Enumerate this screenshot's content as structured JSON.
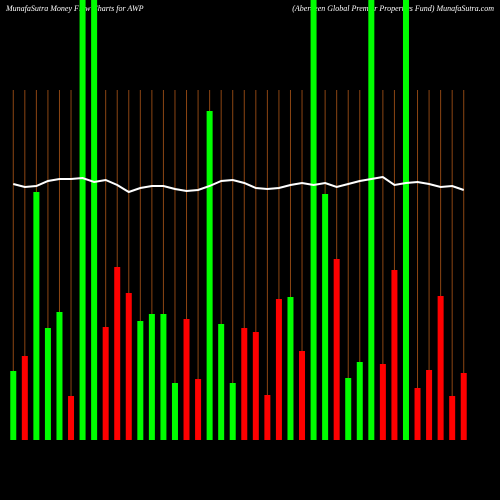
{
  "chart_data": {
    "type": "bar",
    "title": "MunafaSutra  Money Flow  Charts for AWP",
    "subtitle": "(Aberdeen  Global Premier Properties Fund) MunafaSutra.com",
    "categories": [
      null,
      null,
      null,
      null,
      null,
      null,
      null,
      null,
      null,
      null,
      null,
      null,
      null,
      null,
      null,
      null,
      null,
      null,
      null,
      null,
      null,
      null,
      null,
      null,
      null,
      null,
      null,
      null,
      null,
      null,
      null,
      null,
      null,
      null,
      null,
      null,
      null,
      null,
      null,
      null
    ],
    "values": [
      69,
      84,
      248,
      112,
      128,
      44,
      440,
      440,
      113,
      173,
      147,
      119,
      126,
      126,
      57,
      121,
      61,
      329,
      116,
      57,
      112,
      108,
      45,
      141,
      143,
      89,
      440,
      246,
      181,
      62,
      78,
      440,
      76,
      170,
      440,
      52,
      70,
      144,
      44,
      67
    ],
    "colors": [
      "#00ff00",
      "#ff0000",
      "#00ff00",
      "#00ff00",
      "#00ff00",
      "#ff0000",
      "#00ff00",
      "#00ff00",
      "#ff0000",
      "#ff0000",
      "#ff0000",
      "#00ff00",
      "#00ff00",
      "#00ff00",
      "#00ff00",
      "#ff0000",
      "#ff0000",
      "#00ff00",
      "#00ff00",
      "#00ff00",
      "#ff0000",
      "#ff0000",
      "#ff0000",
      "#ff0000",
      "#00ff00",
      "#ff0000",
      "#00ff00",
      "#00ff00",
      "#ff0000",
      "#00ff00",
      "#00ff00",
      "#00ff00",
      "#ff0000",
      "#ff0000",
      "#00ff00",
      "#ff0000",
      "#ff0000",
      "#ff0000",
      "#ff0000",
      "#ff0000"
    ],
    "line": {
      "color": "#ffffff",
      "values": [
        256,
        253,
        254,
        259,
        261,
        261,
        262,
        258,
        260,
        255,
        248,
        252,
        254,
        254,
        251,
        249,
        250,
        254,
        259,
        260,
        257,
        252,
        251,
        252,
        255,
        257,
        255,
        257,
        253,
        256,
        259,
        261,
        263,
        255,
        257,
        258,
        256,
        253,
        254,
        250
      ]
    },
    "grid_color": "#8b4513",
    "ylim": [
      0,
      440
    ]
  }
}
